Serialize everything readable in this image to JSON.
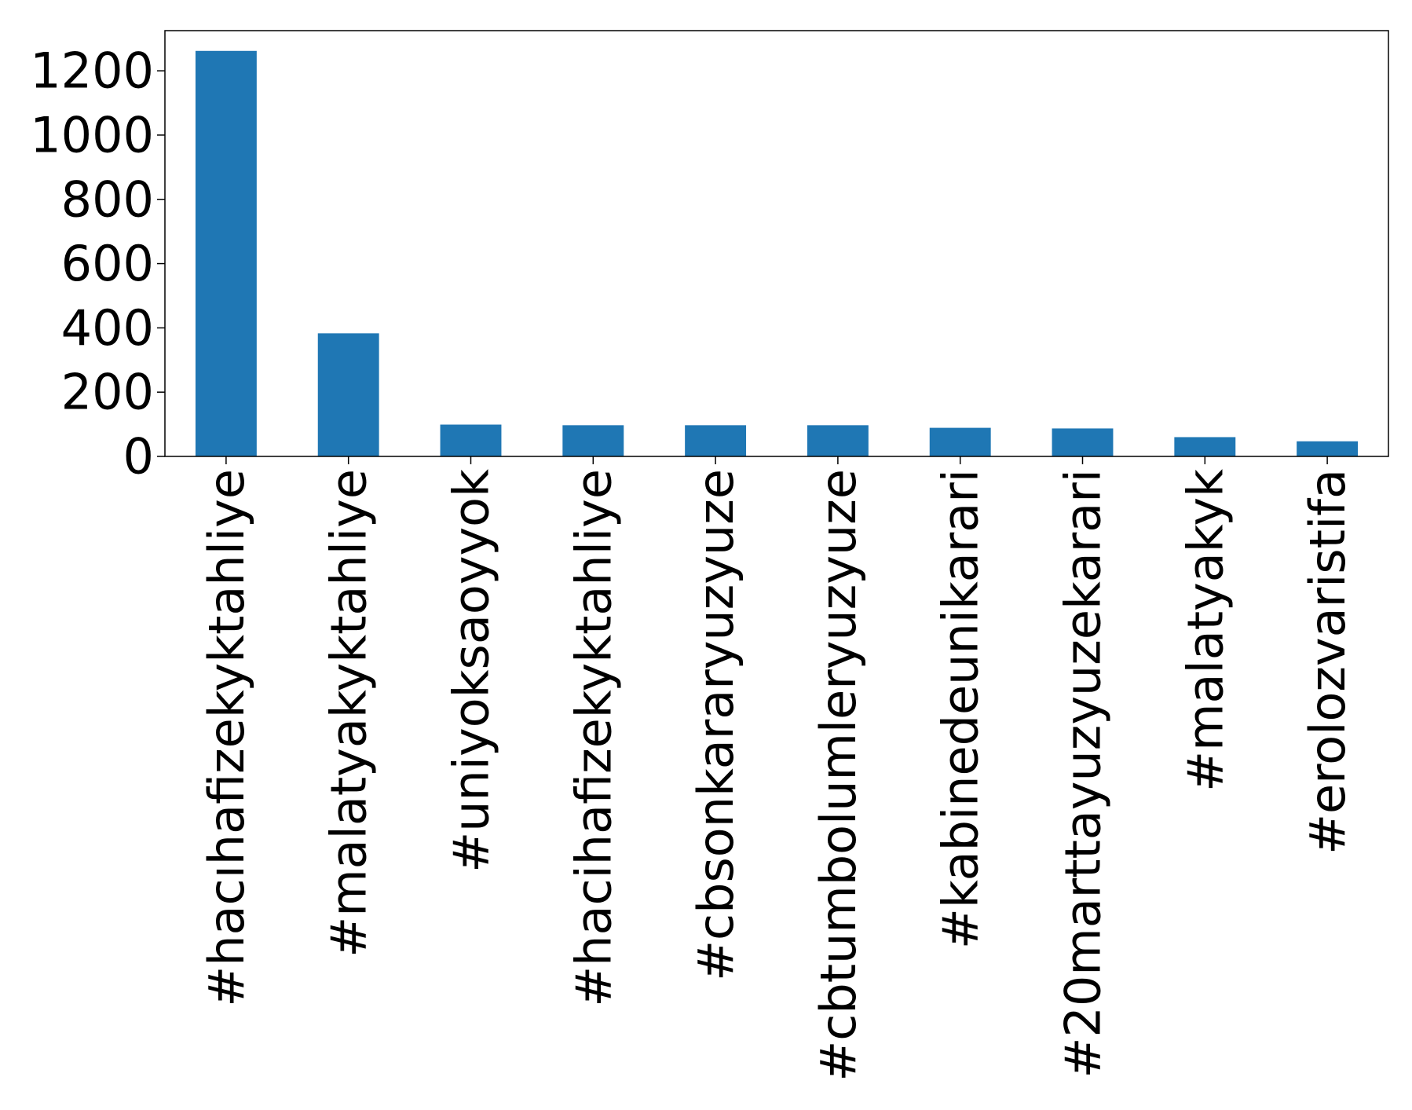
{
  "chart_data": {
    "type": "bar",
    "title": "",
    "xlabel": "",
    "ylabel": "",
    "categories": [
      "#hacıhafizekyktahliye",
      "#malatyakyktahliye",
      "#uniyoksaoyyok",
      "#hacihafizekyktahliye",
      "#cbsonkararyuzyuze",
      "#cbtumbolumleryuzyuze",
      "#kabinedeunikarari",
      "#20marttayuzyuzekarari",
      "#malatyakyk",
      "#erolozvaristifa"
    ],
    "values": [
      1262,
      383,
      99,
      97,
      97,
      97,
      89,
      87,
      60,
      47
    ],
    "ylim": [
      0,
      1325
    ],
    "yticks": [
      0,
      200,
      400,
      600,
      800,
      1000,
      1200
    ],
    "grid": false,
    "bar_color": "#1f77b4"
  }
}
